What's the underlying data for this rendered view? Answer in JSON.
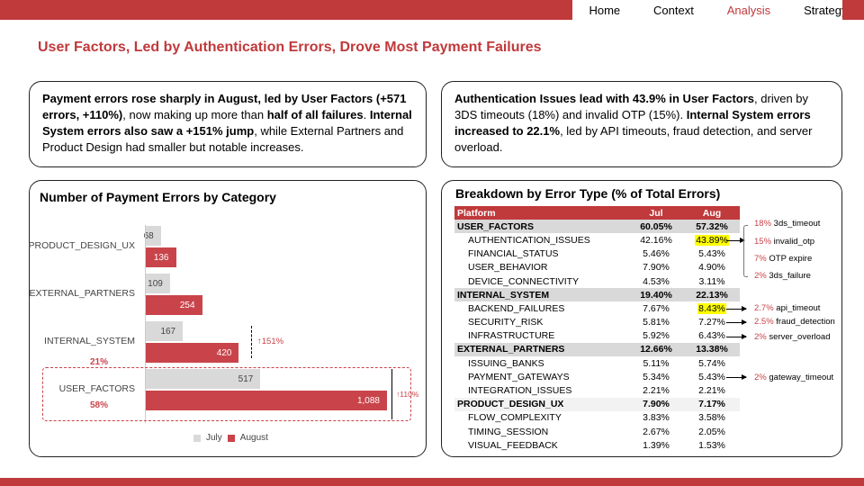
{
  "nav": {
    "items": [
      "Home",
      "Context",
      "Analysis",
      "Strategy"
    ],
    "active": "Analysis"
  },
  "colors": {
    "accent": "#c0393b",
    "july": "#d9d9d9",
    "august": "#c9444a",
    "highlight": "#ffff00"
  },
  "title": "User Factors, Led by Authentication Errors, Drove Most Payment Failures",
  "summary_left": {
    "b1": "Payment errors rose sharply in August, led by User Factors (+571 errors, +110%)",
    "t1": ", now making up more than ",
    "b2": "half of all failures",
    "t2": ". ",
    "b3": "Internal System errors also saw a +151% jump",
    "t3": ", while External Partners and Product Design had smaller but notable increases."
  },
  "summary_right": {
    "b1": "Authentication Issues lead with 43.9% in User Factors",
    "t1": ", driven by 3DS timeouts (18%) and invalid OTP (15%). ",
    "b2": "Internal System errors increased to 22.1%",
    "t2": ", led by API timeouts, fraud detection, and server overload."
  },
  "chart_data": {
    "type": "bar",
    "orientation": "horizontal",
    "title": "Number of Payment Errors by Category",
    "categories": [
      "PRODUCT_DESIGN_UX",
      "EXTERNAL_PARTNERS",
      "INTERNAL_SYSTEM",
      "USER_FACTORS"
    ],
    "series": [
      {
        "name": "July",
        "values": [
          68,
          109,
          167,
          517
        ],
        "labels": [
          "68",
          "109",
          "167",
          "517"
        ]
      },
      {
        "name": "August",
        "values": [
          136,
          254,
          420,
          1088
        ],
        "labels": [
          "136",
          "254",
          "420",
          "1,088"
        ]
      }
    ],
    "legend": "bottom",
    "annotations": {
      "internal_share": "21%",
      "user_share": "58%",
      "internal_growth": "↑151%",
      "user_growth": "↑110%"
    }
  },
  "table": {
    "title": "Breakdown by Error Type (% of Total Errors)",
    "headers": [
      "Platform",
      "Jul",
      "Aug"
    ],
    "rows": [
      {
        "name": "USER_FACTORS",
        "jul": "60.05%",
        "aug": "57.32%",
        "type": "grp"
      },
      {
        "name": "AUTHENTICATION_ISSUES",
        "jul": "42.16%",
        "aug": "43.89%",
        "type": "sub",
        "hl": true
      },
      {
        "name": "FINANCIAL_STATUS",
        "jul": "5.46%",
        "aug": "5.43%",
        "type": "sub"
      },
      {
        "name": "USER_BEHAVIOR",
        "jul": "7.90%",
        "aug": "4.90%",
        "type": "sub"
      },
      {
        "name": "DEVICE_CONNECTIVITY",
        "jul": "4.53%",
        "aug": "3.11%",
        "type": "sub"
      },
      {
        "name": "INTERNAL_SYSTEM",
        "jul": "19.40%",
        "aug": "22.13%",
        "type": "grp"
      },
      {
        "name": "BACKEND_FAILURES",
        "jul": "7.67%",
        "aug": "8.43%",
        "type": "sub",
        "hl": true
      },
      {
        "name": "SECURITY_RISK",
        "jul": "5.81%",
        "aug": "7.27%",
        "type": "sub"
      },
      {
        "name": "INFRASTRUCTURE",
        "jul": "5.92%",
        "aug": "6.43%",
        "type": "sub"
      },
      {
        "name": "EXTERNAL_PARTNERS",
        "jul": "12.66%",
        "aug": "13.38%",
        "type": "grp"
      },
      {
        "name": "ISSUING_BANKS",
        "jul": "5.11%",
        "aug": "5.74%",
        "type": "sub"
      },
      {
        "name": "PAYMENT_GATEWAYS",
        "jul": "5.34%",
        "aug": "5.43%",
        "type": "sub"
      },
      {
        "name": "INTEGRATION_ISSUES",
        "jul": "2.21%",
        "aug": "2.21%",
        "type": "sub"
      },
      {
        "name": "PRODUCT_DESIGN_UX",
        "jul": "7.90%",
        "aug": "7.17%",
        "type": "grp2"
      },
      {
        "name": "FLOW_COMPLEXITY",
        "jul": "3.83%",
        "aug": "3.58%",
        "type": "sub"
      },
      {
        "name": "TIMING_SESSION",
        "jul": "2.67%",
        "aug": "2.05%",
        "type": "sub"
      },
      {
        "name": "VISUAL_FEEDBACK",
        "jul": "1.39%",
        "aug": "1.53%",
        "type": "sub"
      }
    ]
  },
  "notes": [
    {
      "pct": "18%",
      "label": "3ds_timeout"
    },
    {
      "pct": "15%",
      "label": "invalid_otp"
    },
    {
      "pct": "7%",
      "label": "OTP expire"
    },
    {
      "pct": "2%",
      "label": "3ds_failure"
    },
    {
      "pct": "2.7%",
      "label": "api_timeout"
    },
    {
      "pct": "2.5%",
      "label": "fraud_detection"
    },
    {
      "pct": "2%",
      "label": "server_overload"
    },
    {
      "pct": "2%",
      "label": "gateway_timeout"
    }
  ]
}
